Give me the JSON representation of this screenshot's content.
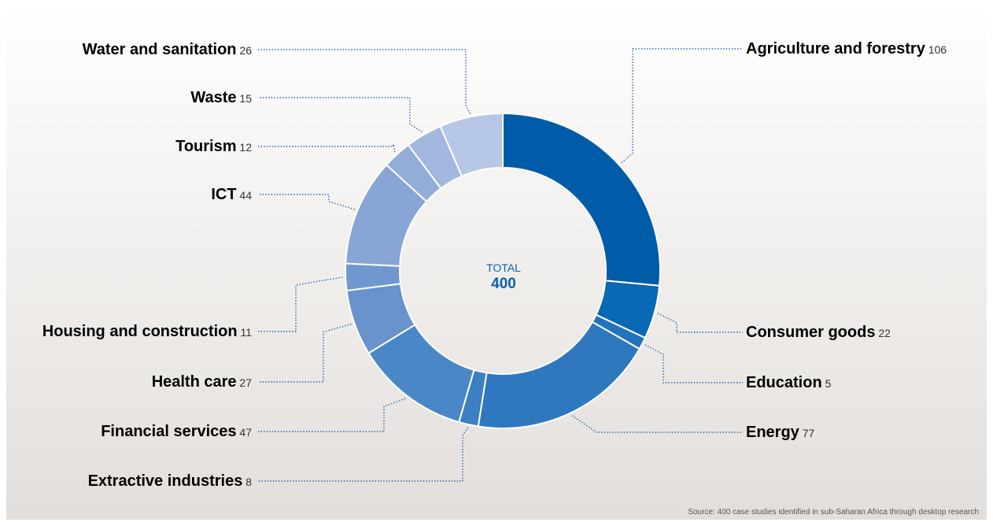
{
  "chart_data": {
    "type": "pie",
    "variant": "donut",
    "center": {
      "label": "TOTAL",
      "value": "400"
    },
    "slices": [
      {
        "label": "Agriculture and forestry",
        "value": 106,
        "color": "#005ba8"
      },
      {
        "label": "Consumer goods",
        "value": 22,
        "color": "#0a69b4"
      },
      {
        "label": "Education",
        "value": 5,
        "color": "#2273bb"
      },
      {
        "label": "Energy",
        "value": 77,
        "color": "#2f78be"
      },
      {
        "label": "Extractive industries",
        "value": 8,
        "color": "#3a80c3"
      },
      {
        "label": "Financial services",
        "value": 47,
        "color": "#4a87c7"
      },
      {
        "label": "Health care",
        "value": 27,
        "color": "#6893cc"
      },
      {
        "label": "Housing and construction",
        "value": 11,
        "color": "#7098ce"
      },
      {
        "label": "ICT",
        "value": 44,
        "color": "#88a5d6"
      },
      {
        "label": "Tourism",
        "value": 12,
        "color": "#93add9"
      },
      {
        "label": "Waste",
        "value": 15,
        "color": "#a2b8df"
      },
      {
        "label": "Water and sanitation",
        "value": 26,
        "color": "#b6c7e6"
      }
    ]
  },
  "source": "Source: 400 case studies identified in sub-Saharan Africa through desktop research",
  "colors": {
    "leader_line": "#1f5fa8",
    "center_text": "#0a5fb0"
  }
}
